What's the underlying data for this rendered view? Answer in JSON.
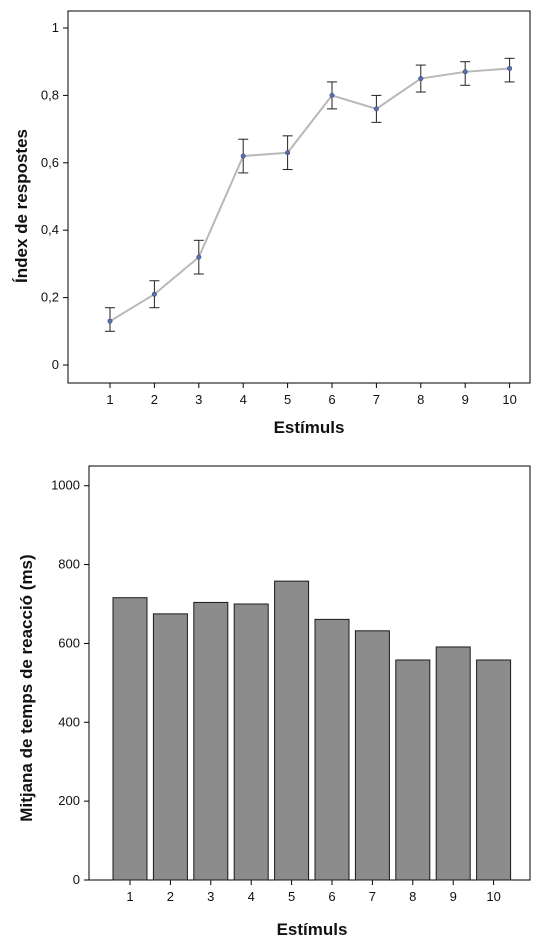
{
  "colors": {
    "line": "#b8b8b8",
    "marker": "#5b6fa8",
    "errorbar": "#222222",
    "bar_fill": "#8c8c8c",
    "bar_stroke": "#1a1a1a",
    "axis": "#000000"
  },
  "chart_data": [
    {
      "type": "line",
      "x": [
        1,
        2,
        3,
        4,
        5,
        6,
        7,
        8,
        9,
        10
      ],
      "values": [
        0.13,
        0.21,
        0.32,
        0.62,
        0.63,
        0.8,
        0.76,
        0.85,
        0.87,
        0.88
      ],
      "error_low": [
        0.1,
        0.17,
        0.27,
        0.57,
        0.58,
        0.76,
        0.72,
        0.81,
        0.83,
        0.84
      ],
      "error_high": [
        0.17,
        0.25,
        0.37,
        0.67,
        0.68,
        0.84,
        0.8,
        0.89,
        0.9,
        0.91
      ],
      "xlabel": "Estímuls",
      "ylabel": "Índex de respostes",
      "ylim": [
        0,
        1
      ],
      "yticks": [
        0,
        0.2,
        0.4,
        0.6,
        0.8,
        1
      ],
      "ytick_labels": [
        "0",
        "0,2",
        "0,4",
        "0,6",
        "0,8",
        "1"
      ],
      "xtick_labels": [
        "1",
        "2",
        "3",
        "4",
        "5",
        "6",
        "7",
        "8",
        "9",
        "10"
      ],
      "grid": false
    },
    {
      "type": "bar",
      "categories": [
        "1",
        "2",
        "3",
        "4",
        "5",
        "6",
        "7",
        "8",
        "9",
        "10"
      ],
      "values": [
        716,
        675,
        704,
        700,
        758,
        661,
        632,
        558,
        591,
        558
      ],
      "xlabel": "Estímuls",
      "ylabel": "Mitjana de temps de reacció (ms)",
      "ylim": [
        0,
        1050
      ],
      "yticks": [
        0,
        200,
        400,
        600,
        800,
        1000
      ],
      "ytick_labels": [
        "0",
        "200",
        "400",
        "600",
        "800",
        "1000"
      ],
      "grid": false
    }
  ]
}
